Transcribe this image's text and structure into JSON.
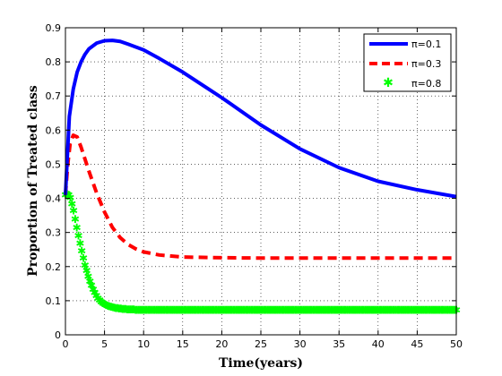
{
  "chart_data": {
    "type": "line",
    "title": "",
    "xlabel": "Time(years)",
    "ylabel": "Proportion of Treated class",
    "xlim": [
      0,
      50
    ],
    "ylim": [
      0,
      0.9
    ],
    "xticks": [
      0,
      5,
      10,
      15,
      20,
      25,
      30,
      35,
      40,
      45,
      50
    ],
    "yticks": [
      0,
      0.1,
      0.2,
      0.3,
      0.4,
      0.5,
      0.6,
      0.7,
      0.8,
      0.9
    ],
    "xtick_labels": [
      "0",
      "5",
      "10",
      "15",
      "20",
      "25",
      "30",
      "35",
      "40",
      "45",
      "50"
    ],
    "ytick_labels": [
      "0",
      "0.1",
      "0.2",
      "0.3",
      "0.4",
      "0.5",
      "0.6",
      "0.7",
      "0.8",
      "0.9"
    ],
    "grid": true,
    "legend_position": "top-right",
    "series": [
      {
        "name": "π=0.1",
        "color": "#0000ff",
        "style": "solid",
        "x": [
          0,
          0.5,
          1,
          1.5,
          2,
          2.5,
          3,
          4,
          5,
          6,
          7,
          8,
          10,
          12,
          15,
          18,
          20,
          25,
          30,
          35,
          40,
          45,
          50
        ],
        "y": [
          0.41,
          0.64,
          0.72,
          0.77,
          0.8,
          0.822,
          0.838,
          0.855,
          0.862,
          0.863,
          0.86,
          0.852,
          0.835,
          0.81,
          0.77,
          0.725,
          0.695,
          0.615,
          0.545,
          0.49,
          0.45,
          0.425,
          0.405
        ]
      },
      {
        "name": "π=0.3",
        "color": "#ff0000",
        "style": "dashed",
        "x": [
          0,
          0.3,
          0.6,
          1,
          1.5,
          2,
          3,
          4,
          5,
          6,
          7,
          8,
          9,
          10,
          12,
          15,
          20,
          25,
          30,
          35,
          40,
          45,
          50
        ],
        "y": [
          0.41,
          0.5,
          0.56,
          0.585,
          0.58,
          0.55,
          0.48,
          0.415,
          0.36,
          0.315,
          0.285,
          0.265,
          0.252,
          0.243,
          0.234,
          0.228,
          0.226,
          0.225,
          0.225,
          0.225,
          0.225,
          0.225,
          0.225
        ]
      },
      {
        "name": "π=0.8",
        "color": "#00ff00",
        "style": "marker",
        "x": [
          0,
          0.3,
          0.6,
          1,
          1.5,
          2,
          2.5,
          3,
          3.5,
          4,
          4.5,
          5,
          5.5,
          6,
          7,
          8,
          9,
          10,
          12,
          15,
          20,
          25,
          30,
          35,
          40,
          45,
          50
        ],
        "y": [
          0.41,
          0.415,
          0.405,
          0.37,
          0.31,
          0.255,
          0.205,
          0.165,
          0.135,
          0.113,
          0.098,
          0.09,
          0.085,
          0.081,
          0.077,
          0.075,
          0.074,
          0.074,
          0.073,
          0.073,
          0.073,
          0.073,
          0.073,
          0.073,
          0.073,
          0.073,
          0.073
        ]
      }
    ]
  }
}
